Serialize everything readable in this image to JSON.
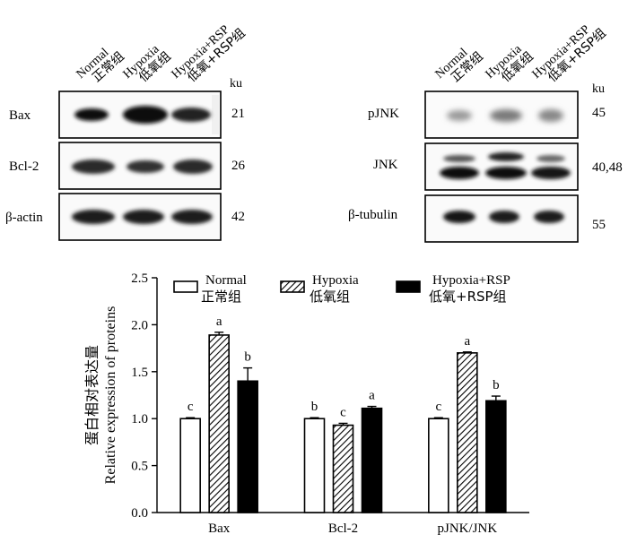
{
  "blots": {
    "left": {
      "lanes": [
        {
          "en": "Normal",
          "zh": "正常组"
        },
        {
          "en": "Hypoxia",
          "zh": "低氧组"
        },
        {
          "en": "Hypoxia+RSP",
          "zh": "低氧+RSP组"
        }
      ],
      "unit": "ku",
      "rows": [
        {
          "label": "Bax",
          "size": "21"
        },
        {
          "label": "Bcl-2",
          "size": "26"
        },
        {
          "label": "β-actin",
          "size": "42"
        }
      ]
    },
    "right": {
      "lanes": [
        {
          "en": "Normal",
          "zh": "正常组"
        },
        {
          "en": "Hypoxia",
          "zh": "低氧组"
        },
        {
          "en": "Hypoxia+RSP",
          "zh": "低氧+RSP组"
        }
      ],
      "unit": "ku",
      "rows": [
        {
          "label": "pJNK",
          "size": "45"
        },
        {
          "label": "JNK",
          "size": "40,48"
        },
        {
          "label": "β-tubulin",
          "size": "55"
        }
      ]
    }
  },
  "chart_data": {
    "type": "bar",
    "categories": [
      "Bax",
      "Bcl-2",
      "pJNK/JNK"
    ],
    "ylabel_zh": "蛋白相对表达量",
    "ylabel_en": "Relative expression of proteins",
    "ylim": [
      0,
      2.5
    ],
    "yticks": [
      "0.0",
      "0.5",
      "1.0",
      "1.5",
      "2.0",
      "2.5"
    ],
    "legend_position": "top",
    "series": [
      {
        "name": "Normal",
        "name_zh": "正常组",
        "fill": "white",
        "values": [
          1.0,
          1.0,
          1.0
        ],
        "errors": [
          0.01,
          0.01,
          0.01
        ],
        "letters": [
          "c",
          "b",
          "c"
        ]
      },
      {
        "name": "Hypoxia",
        "name_zh": "低氧组",
        "fill": "hatch",
        "values": [
          1.89,
          0.93,
          1.7
        ],
        "errors": [
          0.03,
          0.02,
          0.01
        ],
        "letters": [
          "a",
          "c",
          "a"
        ]
      },
      {
        "name": "Hypoxia+RSP",
        "name_zh": "低氧+RSP组",
        "fill": "black",
        "values": [
          1.4,
          1.11,
          1.19
        ],
        "errors": [
          0.14,
          0.02,
          0.05
        ],
        "letters": [
          "b",
          "a",
          "b"
        ]
      }
    ]
  }
}
